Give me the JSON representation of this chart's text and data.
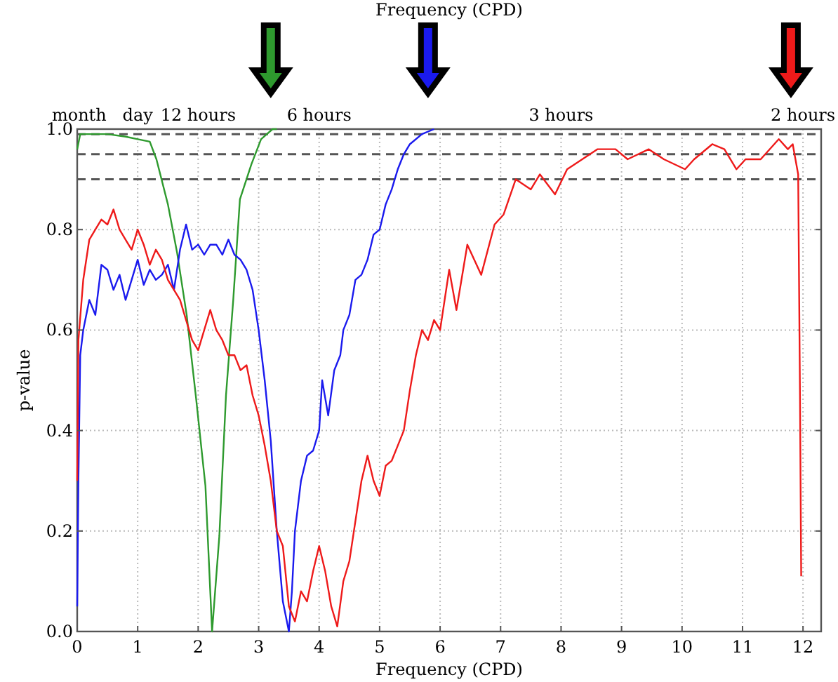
{
  "chart_data": {
    "type": "line",
    "xlabel": "Frequency (CPD)",
    "ylabel": "p-value",
    "x2label": "Frequency (CPD)",
    "xlim": [
      0,
      12.3
    ],
    "xticks": [
      0,
      1,
      2,
      3,
      4,
      5,
      6,
      7,
      8,
      9,
      10,
      11,
      12
    ],
    "annotations": [
      {
        "text": "month",
        "x": 0.033,
        "y": 1
      },
      {
        "text": "day",
        "x": 1,
        "y": 1
      },
      {
        "text": "12 hours",
        "x": 2,
        "y": 1
      },
      {
        "text": "6 hours",
        "x": 4,
        "y": 1
      },
      {
        "text": "3 hours",
        "x": 8,
        "y": 1
      },
      {
        "text": "2 hours",
        "x": 12,
        "y": 1
      }
    ],
    "ylim": [
      0,
      1
    ],
    "yticks": [
      {
        "value": 0,
        "label": "0.0"
      },
      {
        "value": 0.2,
        "label": "0.2"
      },
      {
        "value": 0.4,
        "label": "0.4"
      },
      {
        "value": 0.6,
        "label": "0.6"
      },
      {
        "value": 0.8,
        "label": "0.8"
      },
      {
        "value": 1,
        "label": "1.0"
      }
    ],
    "grid": true,
    "line_style": "solid",
    "ref_lines": [
      {
        "axis": "y",
        "value": 0.99,
        "color": "#555555",
        "line_style": "dashed"
      },
      {
        "axis": "y",
        "value": 0.95,
        "color": "#555555",
        "line_style": "dashed"
      },
      {
        "axis": "y",
        "value": 0.9,
        "color": "#555555",
        "line_style": "dashed"
      }
    ],
    "series": [
      {
        "color": "#2e9a2e",
        "x": [
          0,
          0.05,
          0.2,
          0.5,
          0.8,
          1.0,
          1.2,
          1.31,
          1.5,
          1.65,
          1.81,
          1.96,
          2.12,
          2.23,
          2.35,
          2.46,
          2.58,
          2.69,
          2.88,
          3.04,
          3.23,
          3.3
        ],
        "values": [
          0.96,
          0.99,
          0.99,
          0.99,
          0.985,
          0.98,
          0.975,
          0.94,
          0.85,
          0.755,
          0.63,
          0.47,
          0.29,
          0.0,
          0.19,
          0.47,
          0.66,
          0.86,
          0.93,
          0.98,
          1.0,
          1.0
        ]
      },
      {
        "color": "#1a1aee",
        "x": [
          0,
          0.02,
          0.05,
          0.1,
          0.2,
          0.3,
          0.4,
          0.5,
          0.6,
          0.7,
          0.8,
          0.9,
          1.0,
          1.1,
          1.2,
          1.3,
          1.4,
          1.5,
          1.6,
          1.7,
          1.8,
          1.9,
          2.0,
          2.1,
          2.2,
          2.3,
          2.4,
          2.5,
          2.6,
          2.7,
          2.8,
          2.9,
          3.0,
          3.1,
          3.2,
          3.3,
          3.4,
          3.5,
          3.55,
          3.6,
          3.7,
          3.8,
          3.9,
          4.0,
          4.05,
          4.15,
          4.25,
          4.35,
          4.4,
          4.5,
          4.6,
          4.7,
          4.8,
          4.9,
          5.0,
          5.1,
          5.2,
          5.3,
          5.4,
          5.5,
          5.7,
          5.9
        ],
        "values": [
          0.05,
          0.3,
          0.55,
          0.6,
          0.66,
          0.63,
          0.73,
          0.72,
          0.68,
          0.71,
          0.66,
          0.7,
          0.74,
          0.69,
          0.72,
          0.7,
          0.71,
          0.73,
          0.68,
          0.76,
          0.81,
          0.76,
          0.77,
          0.75,
          0.77,
          0.77,
          0.75,
          0.78,
          0.75,
          0.74,
          0.72,
          0.68,
          0.6,
          0.5,
          0.38,
          0.2,
          0.06,
          0.0,
          0.08,
          0.2,
          0.3,
          0.35,
          0.36,
          0.4,
          0.5,
          0.43,
          0.52,
          0.55,
          0.6,
          0.63,
          0.7,
          0.71,
          0.74,
          0.79,
          0.8,
          0.85,
          0.88,
          0.92,
          0.95,
          0.97,
          0.99,
          1.0
        ]
      },
      {
        "color": "#ee1a1a",
        "x": [
          0,
          0.02,
          0.1,
          0.2,
          0.3,
          0.4,
          0.5,
          0.6,
          0.7,
          0.8,
          0.9,
          1.0,
          1.1,
          1.2,
          1.3,
          1.4,
          1.5,
          1.6,
          1.7,
          1.8,
          1.9,
          2.0,
          2.1,
          2.2,
          2.3,
          2.4,
          2.5,
          2.6,
          2.7,
          2.8,
          2.9,
          3.0,
          3.1,
          3.2,
          3.3,
          3.4,
          3.5,
          3.6,
          3.7,
          3.8,
          3.9,
          4.0,
          4.1,
          4.2,
          4.3,
          4.4,
          4.5,
          4.6,
          4.7,
          4.8,
          4.9,
          5.0,
          5.1,
          5.2,
          5.3,
          5.4,
          5.5,
          5.6,
          5.7,
          5.8,
          5.9,
          6.0,
          6.15,
          6.27,
          6.45,
          6.68,
          6.9,
          7.05,
          7.25,
          7.5,
          7.65,
          7.9,
          8.1,
          8.6,
          8.9,
          9.1,
          9.45,
          9.7,
          10.05,
          10.2,
          10.5,
          10.7,
          10.9,
          11.05,
          11.3,
          11.6,
          11.75,
          11.83,
          11.92,
          11.95,
          11.97
        ],
        "values": [
          0.3,
          0.58,
          0.7,
          0.78,
          0.8,
          0.82,
          0.81,
          0.84,
          0.8,
          0.78,
          0.76,
          0.8,
          0.77,
          0.73,
          0.76,
          0.74,
          0.7,
          0.68,
          0.66,
          0.62,
          0.58,
          0.56,
          0.6,
          0.64,
          0.6,
          0.58,
          0.55,
          0.55,
          0.52,
          0.53,
          0.47,
          0.43,
          0.37,
          0.3,
          0.2,
          0.17,
          0.05,
          0.02,
          0.08,
          0.06,
          0.12,
          0.17,
          0.12,
          0.05,
          0.01,
          0.1,
          0.14,
          0.22,
          0.3,
          0.35,
          0.3,
          0.27,
          0.33,
          0.34,
          0.37,
          0.4,
          0.48,
          0.55,
          0.6,
          0.58,
          0.62,
          0.6,
          0.72,
          0.64,
          0.77,
          0.71,
          0.81,
          0.83,
          0.9,
          0.88,
          0.91,
          0.87,
          0.92,
          0.96,
          0.96,
          0.94,
          0.96,
          0.94,
          0.92,
          0.94,
          0.97,
          0.96,
          0.92,
          0.94,
          0.94,
          0.98,
          0.96,
          0.97,
          0.91,
          0.47,
          0.11
        ]
      }
    ]
  }
}
